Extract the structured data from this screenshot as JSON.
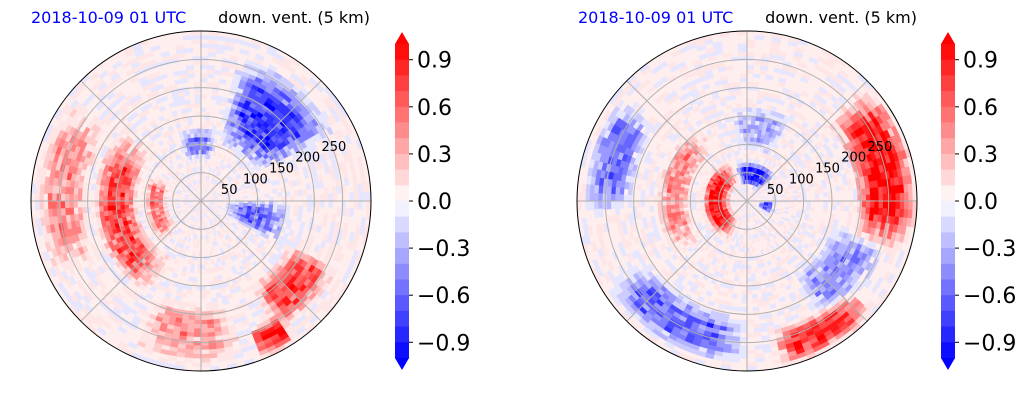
{
  "chart_data": [
    {
      "type": "heatmap",
      "projection": "polar",
      "title_left": "2018-10-09 01 UTC",
      "title_right": "down. vent. (5 km)",
      "r_ticks": [
        50,
        100,
        150,
        200,
        250
      ],
      "r_max": 300,
      "theta_grid_deg": [
        0,
        45,
        90,
        135,
        180,
        225,
        270,
        315
      ],
      "grid": true,
      "colormap": "bwr",
      "colorbar": {
        "vmin": -1.0,
        "vmax": 1.0,
        "levels": 21,
        "extend": "both",
        "ticks": [
          0.9,
          0.6,
          0.3,
          0.0,
          -0.3,
          -0.6,
          -0.9
        ],
        "tick_labels": [
          "0.9",
          "0.6",
          "0.3",
          "0.0",
          "−0.3",
          "−0.6",
          "−0.9"
        ]
      },
      "features": [
        {
          "kind": "band",
          "sign": 1,
          "r": [
            110,
            190
          ],
          "theta": [
            135,
            245
          ],
          "strength": 0.75
        },
        {
          "kind": "band",
          "sign": 1,
          "r": [
            60,
            100
          ],
          "theta": [
            150,
            230
          ],
          "strength": 0.55
        },
        {
          "kind": "band",
          "sign": 1,
          "r": [
            200,
            290
          ],
          "theta": [
            140,
            210
          ],
          "strength": 0.45
        },
        {
          "kind": "band",
          "sign": 1,
          "r": [
            180,
            290
          ],
          "theta": [
            245,
            285
          ],
          "strength": 0.4
        },
        {
          "kind": "band",
          "sign": -1,
          "r": [
            100,
            270
          ],
          "theta": [
            25,
            75
          ],
          "strength": 0.8
        },
        {
          "kind": "band",
          "sign": -1,
          "r": [
            40,
            160
          ],
          "theta": [
            330,
            360
          ],
          "strength": 0.6
        },
        {
          "kind": "band",
          "sign": -1,
          "r": [
            70,
            130
          ],
          "theta": [
            75,
            110
          ],
          "strength": 0.5
        },
        {
          "kind": "band",
          "sign": 1,
          "r": [
            170,
            270
          ],
          "theta": [
            300,
            335
          ],
          "strength": 0.8
        },
        {
          "kind": "band",
          "sign": 1,
          "r": [
            240,
            300
          ],
          "theta": [
            290,
            305
          ],
          "strength": 0.9
        }
      ]
    },
    {
      "type": "heatmap",
      "projection": "polar",
      "title_left": "2018-10-09 01 UTC",
      "title_right": "down. vent. (5 km)",
      "r_ticks": [
        50,
        100,
        150,
        200,
        250
      ],
      "r_max": 300,
      "theta_grid_deg": [
        0,
        45,
        90,
        135,
        180,
        225,
        270,
        315
      ],
      "grid": true,
      "colormap": "bwr",
      "colorbar": {
        "vmin": -1.0,
        "vmax": 1.0,
        "levels": 21,
        "extend": "both",
        "ticks": [
          0.9,
          0.6,
          0.3,
          0.0,
          -0.3,
          -0.6,
          -0.9
        ],
        "tick_labels": [
          "0.9",
          "0.6",
          "0.3",
          "0.0",
          "−0.3",
          "−0.6",
          "−0.9"
        ]
      },
      "features": [
        {
          "kind": "band",
          "sign": 1,
          "r": [
            30,
            80
          ],
          "theta": [
            110,
            250
          ],
          "strength": 1.0
        },
        {
          "kind": "band",
          "sign": -1,
          "r": [
            25,
            70
          ],
          "theta": [
            40,
            110
          ],
          "strength": 0.95
        },
        {
          "kind": "band",
          "sign": -1,
          "r": [
            20,
            50
          ],
          "theta": [
            330,
            360
          ],
          "strength": 0.8
        },
        {
          "kind": "band",
          "sign": 1,
          "r": [
            190,
            300
          ],
          "theta": [
            -20,
            45
          ],
          "strength": 1.0
        },
        {
          "kind": "band",
          "sign": 1,
          "r": [
            100,
            160
          ],
          "theta": [
            120,
            220
          ],
          "strength": 0.45
        },
        {
          "kind": "band",
          "sign": 1,
          "r": [
            230,
            300
          ],
          "theta": [
            280,
            320
          ],
          "strength": 0.9
        },
        {
          "kind": "band",
          "sign": -1,
          "r": [
            200,
            290
          ],
          "theta": [
            210,
            270
          ],
          "strength": 0.6
        },
        {
          "kind": "band",
          "sign": -1,
          "r": [
            200,
            290
          ],
          "theta": [
            140,
            185
          ],
          "strength": 0.55
        },
        {
          "kind": "band",
          "sign": -1,
          "r": [
            150,
            260
          ],
          "theta": [
            300,
            345
          ],
          "strength": 0.45
        },
        {
          "kind": "band",
          "sign": -1,
          "r": [
            90,
            170
          ],
          "theta": [
            60,
            100
          ],
          "strength": 0.35
        }
      ]
    }
  ]
}
